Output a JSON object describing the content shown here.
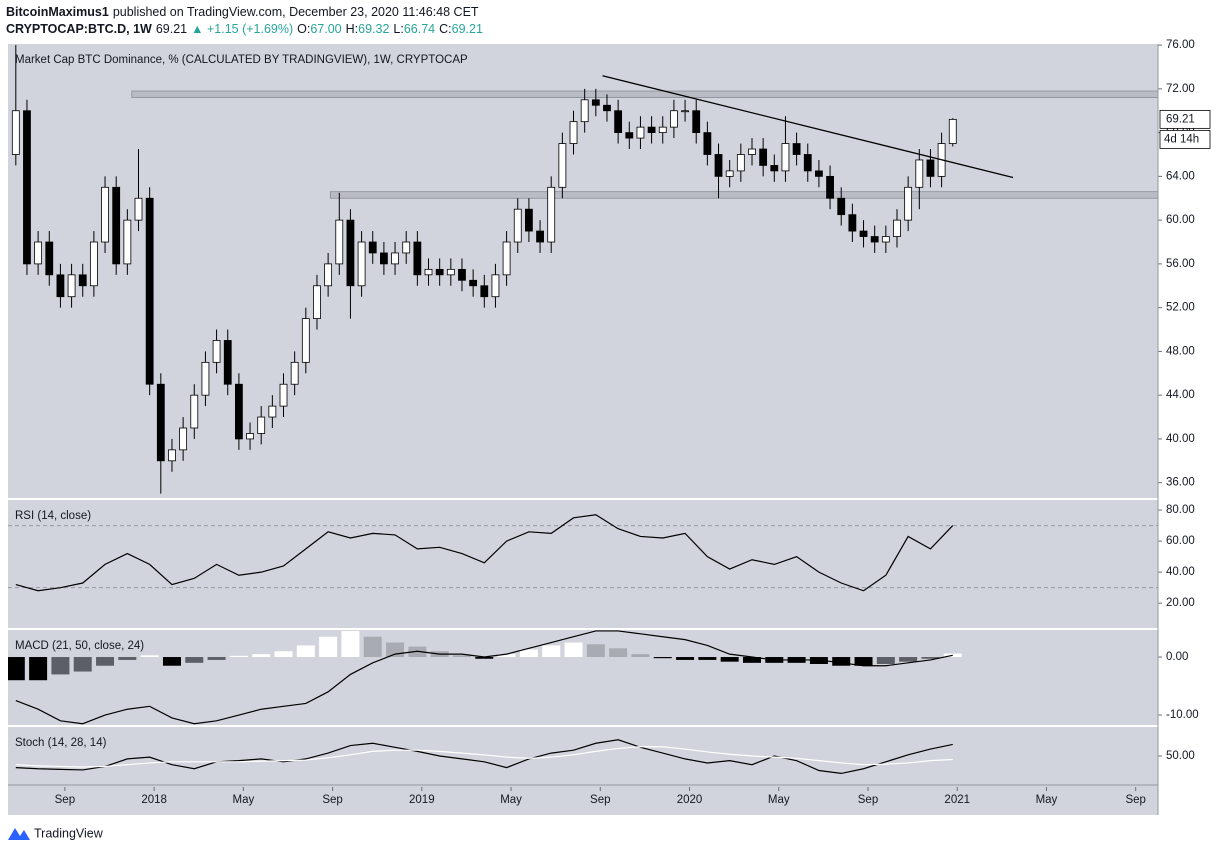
{
  "header": {
    "author": "BitcoinMaximus1",
    "published": "published on TradingView.com, December 23, 2020 11:46:48 CET",
    "symbol": "CRYPTOCAP:BTC.D, 1W",
    "last": "69.21",
    "change": "▲ +1.15 (+1.69%)",
    "ohlc": [
      {
        "label": "O:",
        "value": "67.00"
      },
      {
        "label": "H:",
        "value": "69.32"
      },
      {
        "label": "L:",
        "value": "66.74"
      },
      {
        "label": "C:",
        "value": "69.21"
      }
    ]
  },
  "footer": {
    "brand": "TradingView"
  },
  "chart_data": [
    {
      "type": "candlestick",
      "title": "Market Cap BTC Dominance, % (CALCULATED BY TRADINGVIEW), 1W, CRYPTOCAP",
      "up_color": "#ffffff",
      "down_color": "#000000",
      "countdown": "4d 14h",
      "xlim": [
        5.45,
        57.0
      ],
      "xticks": [
        {
          "value": 8,
          "label": "Sep"
        },
        {
          "value": 12,
          "label": "2018"
        },
        {
          "value": 16,
          "label": "May"
        },
        {
          "value": 20,
          "label": "Sep"
        },
        {
          "value": 24,
          "label": "2019"
        },
        {
          "value": 28,
          "label": "May"
        },
        {
          "value": 32,
          "label": "Sep"
        },
        {
          "value": 36,
          "label": "2020"
        },
        {
          "value": 40,
          "label": "May"
        },
        {
          "value": 44,
          "label": "Sep"
        },
        {
          "value": 48,
          "label": "2021"
        },
        {
          "value": 52,
          "label": "May"
        },
        {
          "value": 56,
          "label": "Sep"
        }
      ],
      "ylim": [
        34.6,
        76.1
      ],
      "yticks": [
        {
          "value": 36,
          "label": "36.00"
        },
        {
          "value": 40,
          "label": "40.00"
        },
        {
          "value": 44,
          "label": "44.00"
        },
        {
          "value": 48,
          "label": "48.00"
        },
        {
          "value": 52,
          "label": "52.00"
        },
        {
          "value": 56,
          "label": "56.00"
        },
        {
          "value": 60,
          "label": "60.00"
        },
        {
          "value": 64,
          "label": "64.00"
        },
        {
          "value": 68,
          "label": "68.00"
        },
        {
          "value": 72,
          "label": "72.00"
        },
        {
          "value": 76,
          "label": "76.00"
        }
      ],
      "x": [
        5.8,
        6.3,
        6.8,
        7.3,
        7.8,
        8.3,
        8.8,
        9.3,
        9.8,
        10.3,
        10.8,
        11.3,
        11.8,
        12.3,
        12.8,
        13.3,
        13.8,
        14.3,
        14.8,
        15.3,
        15.8,
        16.3,
        16.8,
        17.3,
        17.8,
        18.3,
        18.8,
        19.3,
        19.8,
        20.3,
        20.8,
        21.3,
        21.8,
        22.3,
        22.8,
        23.3,
        23.8,
        24.3,
        24.8,
        25.3,
        25.8,
        26.3,
        26.8,
        27.3,
        27.8,
        28.3,
        28.8,
        29.3,
        29.8,
        30.3,
        30.8,
        31.3,
        31.8,
        32.3,
        32.8,
        33.3,
        33.8,
        34.3,
        34.8,
        35.3,
        35.8,
        36.3,
        36.8,
        37.3,
        37.8,
        38.3,
        38.8,
        39.3,
        39.8,
        40.3,
        40.8,
        41.3,
        41.8,
        42.3,
        42.8,
        43.3,
        43.8,
        44.3,
        44.8,
        45.3,
        45.8,
        46.3,
        46.8,
        47.3,
        47.8
      ],
      "open": [
        66,
        70,
        56,
        58,
        55,
        53,
        55,
        54,
        58,
        63,
        56,
        60,
        62,
        45,
        38,
        39,
        41,
        44,
        47,
        49,
        45,
        40,
        40.5,
        42,
        43,
        45,
        47,
        51,
        54,
        56,
        60,
        54,
        58,
        57,
        56,
        57,
        58,
        55,
        55.5,
        55,
        55.5,
        54.5,
        54,
        53,
        55,
        58,
        61,
        59,
        58,
        63,
        67,
        69,
        71,
        70.5,
        70,
        68,
        67.5,
        68.5,
        68,
        68.5,
        70,
        70,
        68,
        66,
        64,
        64.5,
        66,
        66.5,
        65,
        64.5,
        67,
        66,
        64.5,
        64,
        62,
        60.5,
        59,
        58.5,
        58,
        58.5,
        60,
        63,
        65.5,
        64,
        67
      ],
      "high": [
        76,
        71,
        59,
        59,
        56,
        56,
        56,
        59,
        64,
        64,
        61,
        66.5,
        63,
        46,
        40,
        42,
        45,
        48,
        50,
        50,
        46,
        41.5,
        43,
        44,
        46,
        48,
        52,
        55,
        57,
        62.5,
        61,
        59,
        59,
        58,
        58,
        59,
        59,
        56.5,
        56.5,
        56.5,
        56.5,
        55.5,
        55,
        56,
        59,
        62,
        62,
        60,
        64,
        68,
        70,
        72,
        72,
        71.5,
        71,
        69,
        69.5,
        69.5,
        69.5,
        71,
        71,
        71,
        69,
        67,
        65.5,
        67,
        67.5,
        67.5,
        66,
        69.5,
        68,
        67,
        65.5,
        65,
        63,
        61.5,
        60,
        59.5,
        59.5,
        61,
        64,
        66.5,
        66.5,
        68,
        69.32
      ],
      "low": [
        65,
        55,
        55,
        54,
        52,
        52,
        53,
        53,
        57,
        55,
        55,
        59,
        44,
        35,
        37,
        38,
        40,
        43,
        46,
        44,
        39,
        39,
        39.5,
        41,
        42,
        44,
        46,
        50,
        53,
        55,
        51,
        53,
        56,
        55,
        55,
        56,
        54,
        54,
        54,
        54,
        53.5,
        53,
        52,
        52,
        54,
        57,
        58,
        57,
        57,
        62,
        66,
        68,
        69.5,
        69,
        67,
        66.5,
        66.5,
        67,
        67,
        67.5,
        69,
        67,
        65,
        62,
        63,
        63.5,
        65,
        64,
        63.5,
        63.5,
        65,
        63.5,
        63,
        61,
        59.5,
        58,
        57.5,
        57,
        57,
        57.5,
        59,
        61,
        63,
        63,
        66.74
      ],
      "close": [
        70,
        56,
        58,
        55,
        53,
        55,
        54,
        58,
        63,
        56,
        60,
        62,
        45,
        38,
        39,
        41,
        44,
        47,
        49,
        45,
        40,
        40.5,
        42,
        43,
        45,
        47,
        51,
        54,
        56,
        60,
        54,
        58,
        57,
        56,
        57,
        58,
        55,
        55.5,
        55,
        55.5,
        54.5,
        54,
        53,
        55,
        58,
        61,
        59,
        58,
        63,
        67,
        69,
        71,
        70.5,
        70,
        68,
        67.5,
        68.5,
        68,
        68.5,
        70,
        70,
        68,
        66,
        64,
        64.5,
        66,
        66.5,
        65,
        64.5,
        67,
        66,
        64.5,
        64,
        62,
        60.5,
        59,
        58.5,
        58,
        58.5,
        60,
        63,
        65.5,
        64,
        67,
        69.21
      ],
      "zones": [
        {
          "x0": 11,
          "y0": 71.2,
          "y1": 71.8
        },
        {
          "x0": 19.9,
          "y0": 62,
          "y1": 62.6
        }
      ],
      "trendline": {
        "x": [
          32.1,
          50.5
        ],
        "y": [
          73.2,
          63.9
        ]
      }
    },
    {
      "type": "line",
      "title": "RSI (14, close)",
      "ylim": [
        4,
        86.5
      ],
      "yticks": [
        {
          "value": 20,
          "label": "20.00"
        },
        {
          "value": 40,
          "label": "40.00"
        },
        {
          "value": 60,
          "label": "60.00"
        },
        {
          "value": 80,
          "label": "80.00"
        }
      ],
      "bands": [
        30,
        70
      ],
      "x": [
        5.8,
        6.8,
        7.8,
        8.8,
        9.8,
        10.8,
        11.8,
        12.8,
        13.8,
        14.8,
        15.8,
        16.8,
        17.8,
        18.8,
        19.8,
        20.8,
        21.8,
        22.8,
        23.8,
        24.8,
        25.8,
        26.8,
        27.8,
        28.8,
        29.8,
        30.8,
        31.8,
        32.8,
        33.8,
        34.8,
        35.8,
        36.8,
        37.8,
        38.8,
        39.8,
        40.8,
        41.8,
        42.8,
        43.8,
        44.8,
        45.8,
        46.8,
        47.8
      ],
      "series": [
        {
          "color": "#000000",
          "values": [
            32,
            28,
            30,
            33,
            45,
            52,
            45,
            32,
            36,
            45,
            38,
            40,
            44,
            55,
            66,
            62,
            65,
            64,
            55,
            56,
            52,
            46,
            60,
            66,
            65,
            75,
            77,
            68,
            63,
            62,
            65,
            50,
            42,
            48,
            45,
            50,
            40,
            33,
            28,
            38,
            63,
            55,
            70
          ]
        }
      ]
    },
    {
      "type": "macd",
      "title": "MACD (21, 50, close, 24)",
      "ylim": [
        -11.72,
        4.66
      ],
      "yticks": [
        {
          "value": 0,
          "label": "0.00"
        },
        {
          "value": -10,
          "label": "-10.00"
        }
      ],
      "x": [
        5.8,
        6.8,
        7.8,
        8.8,
        9.8,
        10.8,
        11.8,
        12.8,
        13.8,
        14.8,
        15.8,
        16.8,
        17.8,
        18.8,
        19.8,
        20.8,
        21.8,
        22.8,
        23.8,
        24.8,
        25.8,
        26.8,
        27.8,
        28.8,
        29.8,
        30.8,
        31.8,
        32.8,
        33.8,
        34.8,
        35.8,
        36.8,
        37.8,
        38.8,
        39.8,
        40.8,
        41.8,
        42.8,
        43.8,
        44.8,
        45.8,
        46.8,
        47.8
      ],
      "histogram": [
        -4,
        -4,
        -3,
        -2.5,
        -1.5,
        -0.5,
        0.3,
        -1.5,
        -1,
        -0.5,
        0.2,
        0.5,
        1,
        2,
        3.5,
        4.5,
        3.5,
        2.5,
        1.8,
        1,
        0.3,
        -0.3,
        0.5,
        1.3,
        2,
        2.5,
        2.2,
        1.5,
        0.5,
        -0.2,
        -0.5,
        -0.5,
        -0.8,
        -1,
        -1,
        -1,
        -1.2,
        -1.5,
        -1.5,
        -1.2,
        -0.8,
        -0.3,
        0.6
      ],
      "macd": [
        -7.5,
        -9,
        -11,
        -11.5,
        -10,
        -9,
        -8.5,
        -10.5,
        -11.5,
        -11,
        -10,
        -9,
        -8.5,
        -8,
        -6,
        -3,
        -1,
        0.5,
        1,
        0.5,
        0.5,
        0,
        0.5,
        1.5,
        2.5,
        3.5,
        4.5,
        4.5,
        4,
        3.5,
        3,
        2,
        0.5,
        0,
        -0.5,
        -0.5,
        -0.5,
        -1,
        -1.5,
        -1.5,
        -1,
        -0.5,
        0.3
      ],
      "colors": {
        "pos_up": "#ffffff",
        "pos_down": "#a9abb2",
        "neg_down": "#000000",
        "neg_up": "#5d5f66",
        "line": "#000000"
      }
    },
    {
      "type": "line",
      "title": "Stoch (14, 28, 14)",
      "ylim": [
        0,
        100
      ],
      "yticks": [
        {
          "value": 50,
          "label": "50.00"
        }
      ],
      "x": [
        5.8,
        6.8,
        7.8,
        8.8,
        9.8,
        10.8,
        11.8,
        12.8,
        13.8,
        14.8,
        15.8,
        16.8,
        17.8,
        18.8,
        19.8,
        20.8,
        21.8,
        22.8,
        23.8,
        24.8,
        25.8,
        26.8,
        27.8,
        28.8,
        29.8,
        30.8,
        31.8,
        32.8,
        33.8,
        34.8,
        35.8,
        36.8,
        37.8,
        38.8,
        39.8,
        40.8,
        41.8,
        42.8,
        43.8,
        44.8,
        45.8,
        46.8,
        47.8
      ],
      "series": [
        {
          "color": "#000000",
          "values": [
            30,
            28,
            27,
            26,
            32,
            45,
            48,
            35,
            28,
            40,
            42,
            45,
            40,
            45,
            55,
            68,
            72,
            65,
            58,
            50,
            45,
            40,
            30,
            45,
            55,
            60,
            72,
            78,
            65,
            55,
            45,
            38,
            42,
            35,
            50,
            42,
            25,
            20,
            28,
            40,
            52,
            62,
            70
          ]
        },
        {
          "color": "#ffffff",
          "values": [
            35,
            33,
            32,
            31,
            32,
            35,
            38,
            40,
            40,
            40,
            40,
            41,
            42,
            43,
            47,
            52,
            58,
            60,
            60,
            58,
            55,
            52,
            48,
            46,
            48,
            52,
            58,
            63,
            66,
            66,
            62,
            57,
            53,
            50,
            48,
            46,
            42,
            38,
            35,
            36,
            38,
            42,
            44
          ]
        }
      ]
    }
  ]
}
